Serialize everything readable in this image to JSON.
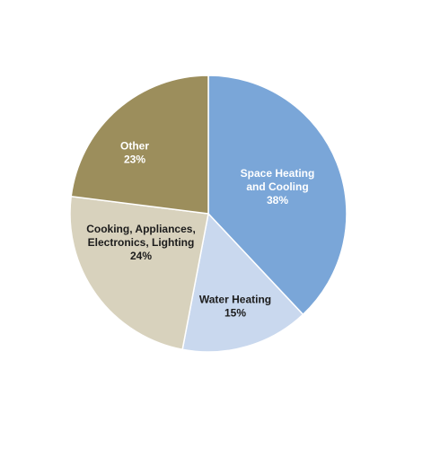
{
  "chart_data": {
    "type": "pie",
    "title": "",
    "slices": [
      {
        "label_lines": [
          "Space Heating",
          "and Cooling",
          "38%"
        ],
        "value": 38,
        "color": "#7aa6d8",
        "label_color": "light"
      },
      {
        "label_lines": [
          "Water Heating",
          "15%"
        ],
        "value": 15,
        "color": "#c9d8ee",
        "label_color": "dark"
      },
      {
        "label_lines": [
          "Cooking, Appliances,",
          "Electronics, Lighting",
          "24%"
        ],
        "value": 24,
        "color": "#d8d2bd",
        "label_color": "dark"
      },
      {
        "label_lines": [
          "Other",
          "23%"
        ],
        "value": 23,
        "color": "#9c8e5c",
        "label_color": "light"
      }
    ],
    "start_angle_deg": 0,
    "direction": "clockwise"
  }
}
